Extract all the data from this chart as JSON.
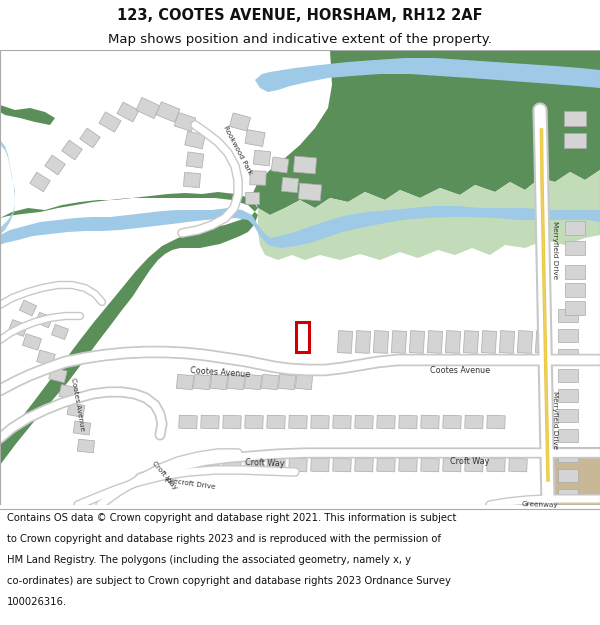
{
  "title_line1": "123, COOTES AVENUE, HORSHAM, RH12 2AF",
  "title_line2": "Map shows position and indicative extent of the property.",
  "title_fontsize": 10.5,
  "subtitle_fontsize": 9.5,
  "footer_fontsize": 7.2,
  "bg_map_color": "#f5f3f0",
  "road_color": "#ffffff",
  "road_outline_color": "#c8c8c8",
  "green_dark": "#5a8f5a",
  "green_light": "#c2dbb8",
  "blue_water": "#9ecae8",
  "blue_stream": "#a8d0e8",
  "building_color": "#d4d4d4",
  "building_edge": "#aaaaaa",
  "red_box_color": "#cc0000",
  "yellow_road": "#e8c840",
  "yellow_road2": "#f0d060",
  "title_bg": "#ffffff",
  "footer_bg": "#ffffff",
  "map_border_color": "#aaaaaa",
  "footer_line1": "Contains OS data © Crown copyright and database right 2021. This information is subject",
  "footer_line2": "to Crown copyright and database rights 2023 and is reproduced with the permission of",
  "footer_line3": "HM Land Registry. The polygons (including the associated geometry, namely x, y",
  "footer_line4": "co-ordinates) are subject to Crown copyright and database rights 2023 Ordnance Survey",
  "footer_line5": "100026316."
}
